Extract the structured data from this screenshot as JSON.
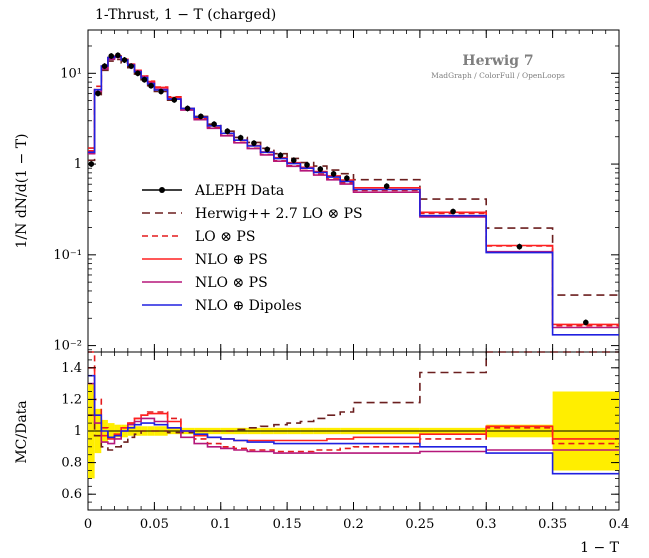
{
  "chart_data": {
    "type": "line",
    "title": "1-Thrust, 1 − T (charged)",
    "generator": {
      "title": "Herwig 7",
      "subtitle": "MadGraph / ColorFull / OpenLoops"
    },
    "xlabel": "1 − T",
    "ylabel": "1/N dN/d(1 − T)",
    "ratio_ylabel": "MC/Data",
    "xlim": [
      0,
      0.4
    ],
    "ylim": [
      0.0085,
      30
    ],
    "yscale": "log",
    "ratio_ylim": [
      0.5,
      1.5
    ],
    "legend_position": "center-left",
    "x_ticks": [
      {
        "value": 0,
        "label": "0"
      },
      {
        "value": 0.05,
        "label": "0.05"
      },
      {
        "value": 0.1,
        "label": "0.1"
      },
      {
        "value": 0.15,
        "label": "0.15"
      },
      {
        "value": 0.2,
        "label": "0.2"
      },
      {
        "value": 0.25,
        "label": "0.25"
      },
      {
        "value": 0.3,
        "label": "0.3"
      },
      {
        "value": 0.35,
        "label": "0.35"
      },
      {
        "value": 0.4,
        "label": "0.4"
      }
    ],
    "y_ticks": [
      {
        "value": 10,
        "label": "10¹"
      },
      {
        "value": 1,
        "label": "1"
      },
      {
        "value": 0.1,
        "label": "10⁻¹"
      },
      {
        "value": 0.01,
        "label": "10⁻²"
      }
    ],
    "ratio_ticks": [
      {
        "value": 1.4,
        "label": "1.4"
      },
      {
        "value": 1.2,
        "label": "1.2"
      },
      {
        "value": 1.0,
        "label": "1"
      },
      {
        "value": 0.8,
        "label": "0.8"
      },
      {
        "value": 0.6,
        "label": "0.6"
      }
    ],
    "bin_edges": [
      0,
      0.005,
      0.01,
      0.015,
      0.02,
      0.025,
      0.03,
      0.035,
      0.04,
      0.045,
      0.05,
      0.06,
      0.07,
      0.08,
      0.09,
      0.1,
      0.11,
      0.12,
      0.13,
      0.14,
      0.15,
      0.16,
      0.17,
      0.18,
      0.19,
      0.2,
      0.25,
      0.3,
      0.35,
      0.4
    ],
    "data": {
      "name": "ALEPH Data",
      "color": "#000000",
      "values": [
        1.0,
        6.0,
        12.0,
        15.5,
        15.8,
        14.0,
        12.0,
        10.0,
        8.5,
        7.3,
        6.3,
        5.1,
        4.1,
        3.35,
        2.75,
        2.3,
        1.95,
        1.7,
        1.45,
        1.25,
        1.1,
        0.98,
        0.88,
        0.78,
        0.7,
        0.57,
        0.3,
        0.123,
        0.018
      ],
      "ratio_band": [
        0.3,
        0.14,
        0.07,
        0.05,
        0.04,
        0.04,
        0.03,
        0.03,
        0.03,
        0.03,
        0.03,
        0.02,
        0.02,
        0.02,
        0.02,
        0.02,
        0.02,
        0.02,
        0.02,
        0.02,
        0.02,
        0.02,
        0.02,
        0.02,
        0.02,
        0.02,
        0.02,
        0.04,
        0.25
      ]
    },
    "series": [
      {
        "name": "Herwig++ 2.7 LO ⊗ PS",
        "color": "#6b1f1f",
        "dash": "8,5",
        "ratio": [
          1.1,
          0.97,
          0.9,
          0.88,
          0.9,
          0.93,
          0.96,
          0.98,
          1.0,
          1.0,
          1.0,
          0.99,
          0.99,
          1.0,
          1.0,
          1.0,
          1.01,
          1.02,
          1.03,
          1.04,
          1.05,
          1.06,
          1.08,
          1.1,
          1.12,
          1.18,
          1.37,
          1.6,
          2.0
        ]
      },
      {
        "name": "LO ⊗ PS",
        "color": "#e41a1c",
        "dash": "6,4",
        "ratio": [
          1.5,
          1.2,
          1.02,
          0.96,
          0.98,
          1.02,
          1.05,
          1.08,
          1.1,
          1.12,
          1.12,
          1.08,
          1.0,
          0.95,
          0.92,
          0.9,
          0.89,
          0.88,
          0.88,
          0.87,
          0.87,
          0.87,
          0.88,
          0.88,
          0.89,
          0.9,
          0.95,
          1.02,
          0.92
        ]
      },
      {
        "name": "NLO ⊕ PS",
        "color": "#ff2020",
        "dash": "",
        "ratio": [
          1.4,
          1.1,
          0.97,
          0.95,
          0.98,
          1.02,
          1.05,
          1.08,
          1.1,
          1.11,
          1.11,
          1.06,
          1.0,
          0.97,
          0.96,
          0.95,
          0.94,
          0.94,
          0.94,
          0.94,
          0.94,
          0.94,
          0.94,
          0.95,
          0.95,
          0.96,
          0.98,
          1.03,
          0.95
        ]
      },
      {
        "name": "NLO ⊗ PS",
        "color": "#b5177a",
        "dash": "",
        "ratio": [
          1.3,
          1.05,
          0.93,
          0.92,
          0.95,
          1.0,
          1.04,
          1.06,
          1.08,
          1.08,
          1.06,
          1.02,
          0.96,
          0.92,
          0.9,
          0.89,
          0.88,
          0.87,
          0.87,
          0.86,
          0.86,
          0.86,
          0.86,
          0.86,
          0.86,
          0.86,
          0.87,
          0.88,
          0.88
        ]
      },
      {
        "name": "NLO ⊕ Dipoles",
        "color": "#2020e0",
        "dash": "",
        "ratio": [
          1.35,
          1.1,
          1.0,
          0.96,
          0.97,
          1.0,
          1.02,
          1.04,
          1.05,
          1.05,
          1.04,
          1.02,
          1.0,
          0.98,
          0.96,
          0.95,
          0.94,
          0.93,
          0.93,
          0.92,
          0.92,
          0.92,
          0.92,
          0.92,
          0.92,
          0.92,
          0.9,
          0.86,
          0.73
        ]
      }
    ]
  }
}
